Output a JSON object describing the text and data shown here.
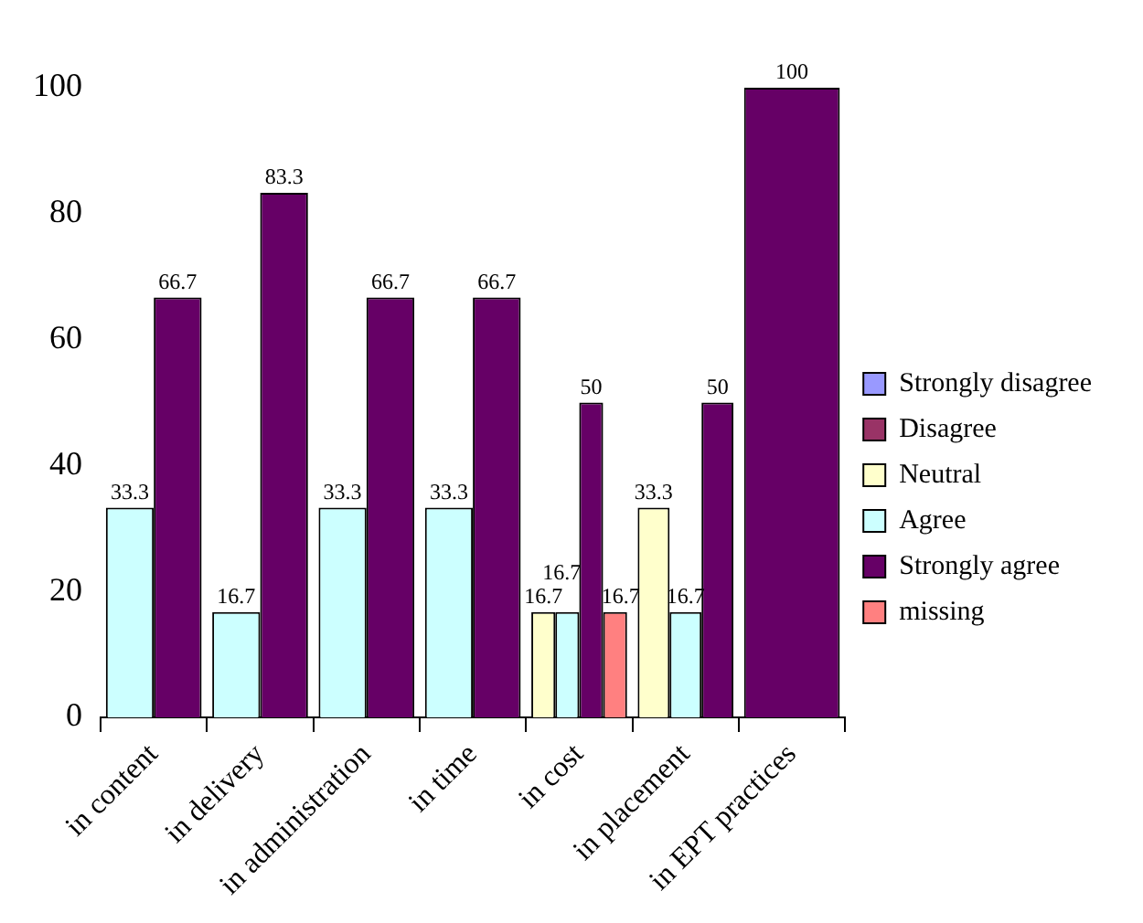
{
  "chart_data": {
    "type": "bar",
    "categories": [
      "in content",
      "in delivery",
      "in administration",
      "in time",
      "in cost",
      "in placement",
      "in EPT practices"
    ],
    "series": [
      {
        "name": "Strongly disagree",
        "color": "#9999ff",
        "values": [
          null,
          null,
          null,
          null,
          null,
          null,
          null
        ]
      },
      {
        "name": "Disagree",
        "color": "#993366",
        "values": [
          null,
          null,
          null,
          null,
          null,
          null,
          null
        ]
      },
      {
        "name": "Neutral",
        "color": "#ffffcc",
        "values": [
          null,
          null,
          null,
          null,
          16.7,
          33.3,
          null
        ]
      },
      {
        "name": "Agree",
        "color": "#ccffff",
        "values": [
          33.3,
          16.7,
          33.3,
          33.3,
          16.7,
          16.7,
          null
        ]
      },
      {
        "name": "Strongly agree",
        "color": "#660066",
        "values": [
          66.7,
          83.3,
          66.7,
          66.7,
          50,
          50,
          100
        ]
      },
      {
        "name": "missing",
        "color": "#ff8080",
        "values": [
          null,
          null,
          null,
          null,
          16.7,
          null,
          null
        ]
      }
    ],
    "ylim": [
      0,
      100
    ],
    "yticks": [
      0,
      20,
      40,
      60,
      80,
      100
    ],
    "grid": false,
    "legend": "right",
    "data_labels": true
  }
}
